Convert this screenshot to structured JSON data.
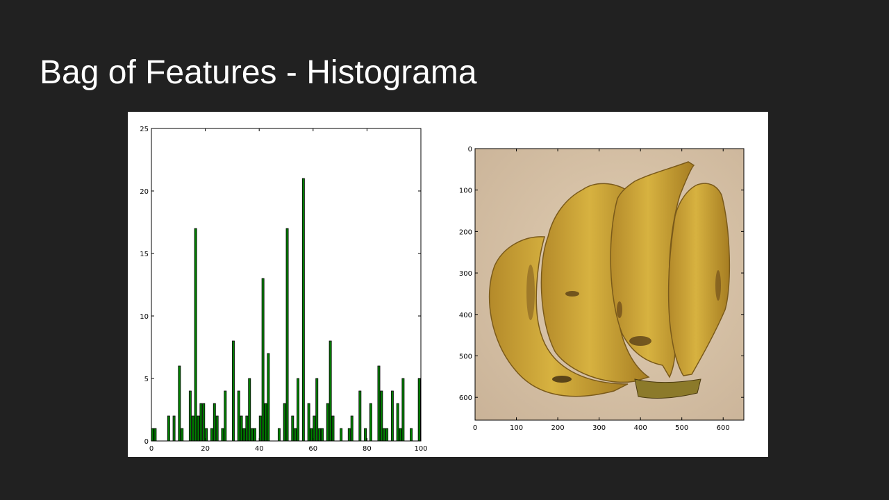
{
  "slide": {
    "title": "Bag of Features - Histograma"
  },
  "colors": {
    "background": "#212121",
    "title": "#ffffff",
    "bar_fill": "#008000",
    "bar_edge": "#000000"
  },
  "chart_data": [
    {
      "type": "bar",
      "xlim": [
        0,
        100
      ],
      "ylim": [
        0,
        25
      ],
      "xticks": [
        0,
        20,
        40,
        60,
        80,
        100
      ],
      "yticks": [
        0,
        5,
        10,
        15,
        20,
        25
      ],
      "bar_width": 0.8,
      "title": "",
      "xlabel": "",
      "ylabel": "",
      "grid": false,
      "x": [
        0,
        1,
        2,
        3,
        4,
        5,
        6,
        7,
        8,
        9,
        10,
        11,
        12,
        13,
        14,
        15,
        16,
        17,
        18,
        19,
        20,
        21,
        22,
        23,
        24,
        25,
        26,
        27,
        28,
        29,
        30,
        31,
        32,
        33,
        34,
        35,
        36,
        37,
        38,
        39,
        40,
        41,
        42,
        43,
        44,
        45,
        46,
        47,
        48,
        49,
        50,
        51,
        52,
        53,
        54,
        55,
        56,
        57,
        58,
        59,
        60,
        61,
        62,
        63,
        64,
        65,
        66,
        67,
        68,
        69,
        70,
        71,
        72,
        73,
        74,
        75,
        76,
        77,
        78,
        79,
        80,
        81,
        82,
        83,
        84,
        85,
        86,
        87,
        88,
        89,
        90,
        91,
        92,
        93,
        94,
        95,
        96,
        97,
        98,
        99
      ],
      "values": [
        1,
        1,
        0,
        0,
        0,
        0,
        2,
        0,
        2,
        0,
        6,
        1,
        0,
        0,
        4,
        2,
        17,
        2,
        3,
        3,
        1,
        0,
        1,
        3,
        2,
        0,
        1,
        4,
        0,
        0,
        8,
        0,
        4,
        2,
        1,
        2,
        5,
        1,
        1,
        0,
        2,
        13,
        3,
        7,
        0,
        0,
        0,
        1,
        0,
        3,
        17,
        0,
        2,
        1,
        5,
        0,
        21,
        0,
        3,
        1,
        2,
        5,
        1,
        1,
        0,
        3,
        8,
        2,
        0,
        0,
        1,
        0,
        0,
        1,
        2,
        0,
        0,
        4,
        0,
        1,
        0,
        3,
        0,
        0,
        6,
        4,
        1,
        1,
        0,
        4,
        0,
        3,
        1,
        5,
        0,
        0,
        1,
        0,
        0,
        5
      ]
    },
    {
      "type": "image",
      "image_subject": "bananas",
      "xlim": [
        0,
        650
      ],
      "ylim": [
        655,
        0
      ],
      "xticks": [
        0,
        100,
        200,
        300,
        400,
        500,
        600
      ],
      "yticks": [
        0,
        100,
        200,
        300,
        400,
        500,
        600
      ],
      "title": "",
      "xlabel": "",
      "ylabel": ""
    }
  ]
}
